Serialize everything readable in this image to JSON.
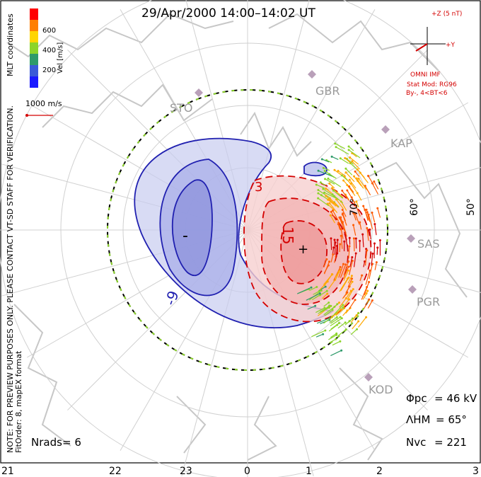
{
  "title": "29/Apr/2000 14:00–14:02 UT",
  "vertical_notes": {
    "mlt": "MLT coordinates",
    "preview": "NOTE: FOR PREVIEW PURPOSES ONLY. PLEASE CONTACT VT-SD STAFF FOR VERIFICATION.",
    "fitorder": "FitOrder: 8, mapEX format"
  },
  "colorbar": {
    "label": "Vel [m/s]",
    "ticks": [
      "600",
      "400",
      "200"
    ],
    "colors": [
      "#ff0000",
      "#ff7f00",
      "#ffd500",
      "#8cd42a",
      "#2e9a6a",
      "#3a5ad8",
      "#1a1aff"
    ]
  },
  "scale_label": "1000 m/s",
  "imf": {
    "bz_label": "+Z (5 nT)",
    "by_label": "+Y",
    "source": "OMNI IMF",
    "model": "Stat Mod: RG96",
    "condition": "By-, 4<BT<6"
  },
  "sites": [
    "STO",
    "GBR",
    "KAP",
    "SAS",
    "PGR",
    "KOD"
  ],
  "lat_labels": [
    "70°",
    "60°",
    "50°"
  ],
  "contour_labels": [
    "3",
    "15",
    "-9",
    "-",
    "+"
  ],
  "mlt_ticks": [
    "21",
    "22",
    "23",
    "0",
    "1",
    "2",
    "3"
  ],
  "stats": {
    "pcp_label": "Φpc",
    "pcp_value": "= 46 kV",
    "hm_label": "ΛHM",
    "hm_value": "= 65°",
    "nvc_label": "Nvc",
    "nvc_value": "= 221",
    "nrads_label": "Nrads",
    "nrads_value": "= 6"
  }
}
